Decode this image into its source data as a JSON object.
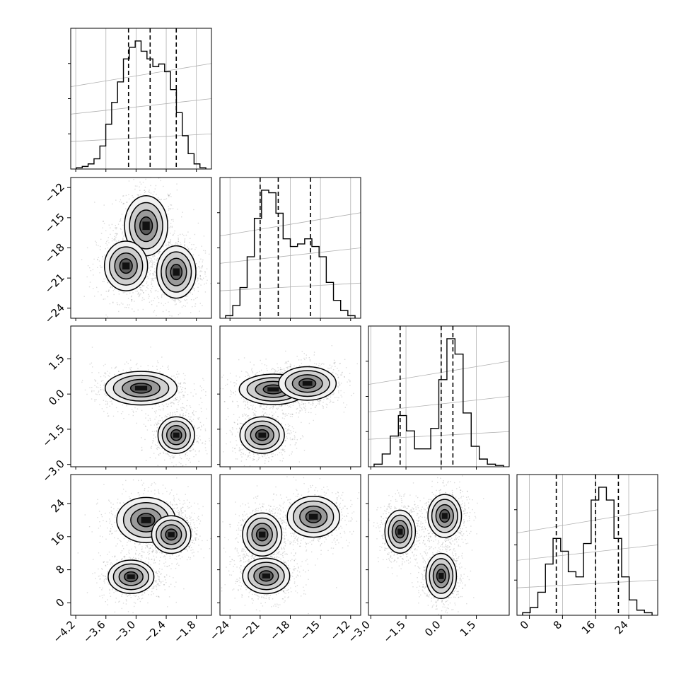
{
  "chart_data": {
    "type": "scatter",
    "variant": "corner-plot",
    "grid": true,
    "parameters": [
      {
        "range": [
          -4.3,
          -1.5
        ],
        "ticks": [
          "-4.2",
          "-3.6",
          "-3.0",
          "-2.4",
          "-1.8"
        ],
        "tick_values": [
          -4.2,
          -3.6,
          -3.0,
          -2.4,
          -1.8
        ],
        "quantiles": [
          -3.15,
          -2.72,
          -2.2
        ]
      },
      {
        "range": [
          -25,
          -11
        ],
        "ticks": [
          "-24",
          "-21",
          "-18",
          "-15",
          "-12"
        ],
        "tick_values": [
          -24,
          -21,
          -18,
          -15,
          -12
        ],
        "quantiles": [
          -21.0,
          -19.2,
          -16.0
        ]
      },
      {
        "range": [
          -3.1,
          2.9
        ],
        "ticks": [
          "-3.0",
          "-1.5",
          "0.0",
          "1.5"
        ],
        "tick_values": [
          -3.0,
          -1.5,
          0.0,
          1.5
        ],
        "quantiles": [
          -1.75,
          0.0,
          0.5
        ]
      },
      {
        "range": [
          -3,
          31
        ],
        "ticks": [
          "0",
          "8",
          "16",
          "24"
        ],
        "tick_values": [
          0,
          8,
          16,
          24
        ],
        "quantiles": [
          6.5,
          16.0,
          21.5
        ]
      }
    ],
    "histograms": [
      [
        1,
        2,
        4,
        8,
        18,
        35,
        52,
        68,
        86,
        95,
        100,
        92,
        86,
        80,
        82,
        76,
        62,
        44,
        26,
        12,
        4,
        1
      ],
      [
        2,
        10,
        24,
        48,
        78,
        100,
        98,
        82,
        62,
        56,
        58,
        62,
        56,
        48,
        28,
        14,
        6,
        2
      ],
      [
        2,
        10,
        24,
        40,
        28,
        14,
        14,
        30,
        68,
        100,
        88,
        42,
        16,
        6,
        2,
        1
      ],
      [
        2,
        6,
        18,
        40,
        60,
        50,
        34,
        30,
        56,
        90,
        100,
        90,
        60,
        30,
        12,
        4,
        2
      ]
    ],
    "panels": [
      {
        "row": 1,
        "col": 0,
        "clusters": [
          {
            "center": [
              -2.8,
              -15.8
            ],
            "r": [
              0.33,
              2.3
            ]
          },
          {
            "center": [
              -3.2,
              -19.8
            ],
            "r": [
              0.33,
              1.9
            ]
          },
          {
            "center": [
              -2.2,
              -20.4
            ],
            "r": [
              0.3,
              2.0
            ]
          }
        ]
      },
      {
        "row": 2,
        "col": 0,
        "clusters": [
          {
            "center": [
              -2.9,
              0.25
            ],
            "r": [
              0.55,
              0.55
            ]
          },
          {
            "center": [
              -2.2,
              -1.75
            ],
            "r": [
              0.28,
              0.6
            ]
          }
        ]
      },
      {
        "row": 2,
        "col": 1,
        "clusters": [
          {
            "center": [
              -19.7,
              0.2
            ],
            "r": [
              2.6,
              0.5
            ]
          },
          {
            "center": [
              -16.3,
              0.45
            ],
            "r": [
              2.2,
              0.55
            ]
          },
          {
            "center": [
              -20.8,
              -1.75
            ],
            "r": [
              1.7,
              0.6
            ]
          }
        ]
      },
      {
        "row": 3,
        "col": 0,
        "clusters": [
          {
            "center": [
              -2.8,
              20.0
            ],
            "r": [
              0.45,
              4.2
            ]
          },
          {
            "center": [
              -2.3,
              16.5
            ],
            "r": [
              0.3,
              3.5
            ]
          },
          {
            "center": [
              -3.1,
              6.3
            ],
            "r": [
              0.35,
              3.1
            ]
          }
        ]
      },
      {
        "row": 3,
        "col": 1,
        "clusters": [
          {
            "center": [
              -20.8,
              16.5
            ],
            "r": [
              1.5,
              4.0
            ]
          },
          {
            "center": [
              -20.4,
              6.5
            ],
            "r": [
              1.8,
              3.3
            ]
          },
          {
            "center": [
              -15.7,
              20.8
            ],
            "r": [
              2.0,
              3.8
            ]
          }
        ]
      },
      {
        "row": 3,
        "col": 2,
        "clusters": [
          {
            "center": [
              -1.75,
              17.2
            ],
            "r": [
              0.5,
              4.0
            ]
          },
          {
            "center": [
              0.15,
              21.0
            ],
            "r": [
              0.55,
              4.0
            ]
          },
          {
            "center": [
              0.0,
              6.5
            ],
            "r": [
              0.5,
              4.2
            ]
          }
        ]
      }
    ]
  }
}
